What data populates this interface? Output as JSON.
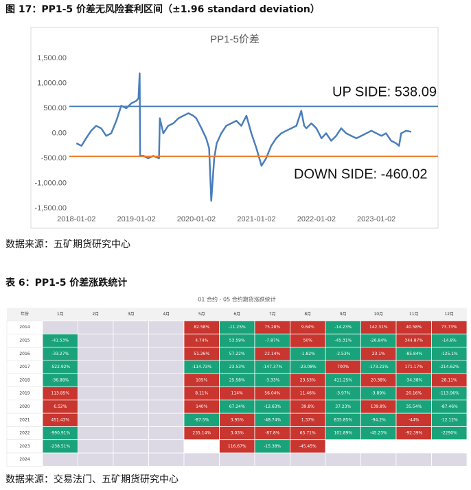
{
  "figure_title": "图 17：PP1-5 价差无风险套利区间（±1.96 standard deviation）",
  "chart_data": {
    "type": "line",
    "title": "PP1-5价差",
    "x": [
      "2018-01-02",
      "2018-02-02",
      "2018-03-02",
      "2018-04-02",
      "2018-05-02",
      "2018-06-02",
      "2018-07-02",
      "2018-08-02",
      "2018-09-02",
      "2018-10-02",
      "2018-11-02",
      "2018-12-02",
      "2019-01-02",
      "2019-01-15",
      "2019-01-22",
      "2019-01-25",
      "2019-02-15",
      "2019-03-15",
      "2019-04-15",
      "2019-05-20",
      "2019-05-25",
      "2019-06-15",
      "2019-07-15",
      "2019-08-15",
      "2019-09-15",
      "2019-10-15",
      "2019-11-15",
      "2019-12-15",
      "2020-01-02",
      "2020-02-02",
      "2020-03-02",
      "2020-03-20",
      "2020-04-02",
      "2020-04-20",
      "2020-05-05",
      "2020-06-02",
      "2020-07-02",
      "2020-08-02",
      "2020-09-02",
      "2020-10-02",
      "2020-11-02",
      "2020-12-02",
      "2021-01-02",
      "2021-02-02",
      "2021-03-02",
      "2021-04-02",
      "2021-05-02",
      "2021-06-02",
      "2021-07-02",
      "2021-08-02",
      "2021-09-02",
      "2021-10-02",
      "2021-10-20",
      "2021-11-02",
      "2021-12-02",
      "2022-01-02",
      "2022-02-02",
      "2022-03-02",
      "2022-04-02",
      "2022-05-02",
      "2022-06-02",
      "2022-07-02",
      "2022-08-02",
      "2022-09-02",
      "2022-10-02",
      "2022-11-02",
      "2022-12-02",
      "2023-01-02",
      "2023-02-02",
      "2023-03-02",
      "2023-04-02",
      "2023-05-02",
      "2023-05-20",
      "2023-06-02",
      "2023-07-02",
      "2023-08-02"
    ],
    "series": [
      {
        "name": "PP1-5价差",
        "color": "#4a7ebb",
        "values": [
          -200,
          -250,
          -100,
          50,
          150,
          100,
          -50,
          0,
          250,
          550,
          500,
          600,
          650,
          700,
          1200,
          -450,
          -450,
          -500,
          -450,
          -500,
          300,
          0,
          150,
          200,
          300,
          350,
          400,
          350,
          300,
          100,
          -100,
          -300,
          -1350,
          -500,
          -200,
          0,
          150,
          200,
          250,
          150,
          350,
          0,
          -300,
          -650,
          -500,
          -250,
          -100,
          0,
          50,
          100,
          150,
          450,
          150,
          100,
          200,
          100,
          -100,
          0,
          -150,
          -50,
          100,
          0,
          -50,
          -100,
          -50,
          0,
          50,
          0,
          -50,
          0,
          -150,
          -200,
          -250,
          0,
          50,
          30
        ]
      }
    ],
    "hlines": [
      {
        "value": 538.09,
        "color": "#4a7ebb",
        "label": "UP SIDE: 538.09"
      },
      {
        "value": -460.02,
        "color": "#f07b2a",
        "label": "DOWN SIDE: -460.02"
      }
    ],
    "ylim": [
      -1500,
      1500
    ],
    "yticks": [
      {
        "value": -1500,
        "label": "-1,500.00"
      },
      {
        "value": -1000,
        "label": "-1,000.00"
      },
      {
        "value": -500,
        "label": "-500.00"
      },
      {
        "value": 0,
        "label": "0.00"
      },
      {
        "value": 500,
        "label": "500.00"
      },
      {
        "value": 1000,
        "label": "1,000.00"
      },
      {
        "value": 1500,
        "label": "1,500.00"
      }
    ],
    "xlim": [
      "2017-11-20",
      "2023-12-10"
    ],
    "xticks": [
      "2018-01-02",
      "2019-01-02",
      "2020-01-02",
      "2021-01-02",
      "2022-01-02",
      "2023-01-02"
    ]
  },
  "source1": "数据来源：五矿期货研究中心",
  "table_title": "表 6：PP1-5 价差涨跌统计",
  "table": {
    "caption": "01 合约 - 05 合约期货涨跌统计",
    "header": [
      "年份",
      "1月",
      "2月",
      "3月",
      "4月",
      "5月",
      "6月",
      "7月",
      "8月",
      "9月",
      "10月",
      "11月",
      "12月"
    ],
    "up_color": "#c8362f",
    "down_color": "#1aa37a",
    "empty_color": "#dcd8e4",
    "rows": [
      {
        "year": "2014",
        "cells": [
          null,
          null,
          null,
          null,
          {
            "t": "82.58%",
            "up": true
          },
          {
            "t": "-11.25%",
            "up": false
          },
          {
            "t": "75.28%",
            "up": true
          },
          {
            "t": "9.64%",
            "up": true
          },
          {
            "t": "-14.23%",
            "up": false
          },
          {
            "t": "142.31%",
            "up": true
          },
          {
            "t": "40.58%",
            "up": true
          },
          {
            "t": "73.73%",
            "up": true
          }
        ]
      },
      {
        "year": "2015",
        "cells": [
          {
            "t": "-41.53%",
            "up": false
          },
          null,
          null,
          null,
          {
            "t": "4.74%",
            "up": true
          },
          {
            "t": "53.59%",
            "up": false
          },
          {
            "t": "-7.87%",
            "up": false
          },
          {
            "t": "50%",
            "up": true
          },
          {
            "t": "-45.31%",
            "up": false
          },
          {
            "t": "-26.84%",
            "up": false
          },
          {
            "t": "344.87%",
            "up": true
          },
          {
            "t": "-14.8%",
            "up": false
          }
        ]
      },
      {
        "year": "2016",
        "cells": [
          {
            "t": "-33.27%",
            "up": false
          },
          null,
          null,
          null,
          {
            "t": "51.26%",
            "up": true
          },
          {
            "t": "57.22%",
            "up": false
          },
          {
            "t": "22.14%",
            "up": true
          },
          {
            "t": "-1.82%",
            "up": false
          },
          {
            "t": "-2.53%",
            "up": false
          },
          {
            "t": "23.1%",
            "up": true
          },
          {
            "t": "-85.84%",
            "up": false
          },
          {
            "t": "-125.1%",
            "up": false
          }
        ]
      },
      {
        "year": "2017",
        "cells": [
          {
            "t": "-522.92%",
            "up": false
          },
          null,
          null,
          null,
          {
            "t": "-114.73%",
            "up": false
          },
          {
            "t": "23.53%",
            "up": false
          },
          {
            "t": "-147.37%",
            "up": false
          },
          {
            "t": "-23.08%",
            "up": false
          },
          {
            "t": "700%",
            "up": true
          },
          {
            "t": "-173.21%",
            "up": false
          },
          {
            "t": "171.17%",
            "up": true
          },
          {
            "t": "-214.62%",
            "up": false
          }
        ]
      },
      {
        "year": "2018",
        "cells": [
          {
            "t": "-36.88%",
            "up": false
          },
          null,
          null,
          null,
          {
            "t": "105%",
            "up": true
          },
          {
            "t": "25.58%",
            "up": false
          },
          {
            "t": "-3.33%",
            "up": false
          },
          {
            "t": "23.53%",
            "up": true
          },
          {
            "t": "411.25%",
            "up": false
          },
          {
            "t": "20.38%",
            "up": true
          },
          {
            "t": "-34.38%",
            "up": false
          },
          {
            "t": "28.11%",
            "up": true
          }
        ]
      },
      {
        "year": "2019",
        "cells": [
          {
            "t": "113.85%",
            "up": true
          },
          null,
          null,
          null,
          {
            "t": "8.11%",
            "up": true
          },
          {
            "t": "114%",
            "up": true
          },
          {
            "t": "56.04%",
            "up": true
          },
          {
            "t": "11.46%",
            "up": true
          },
          {
            "t": "-3.97%",
            "up": false
          },
          {
            "t": "-3.89%",
            "up": false
          },
          {
            "t": "20.16%",
            "up": true
          },
          {
            "t": "-113.96%",
            "up": false
          }
        ]
      },
      {
        "year": "2020",
        "cells": [
          {
            "t": "6.52%",
            "up": true
          },
          null,
          null,
          null,
          {
            "t": "140%",
            "up": true
          },
          {
            "t": "67.24%",
            "up": false
          },
          {
            "t": "-12.63%",
            "up": false
          },
          {
            "t": "39.8%",
            "up": true
          },
          {
            "t": "37.23%",
            "up": false
          },
          {
            "t": "139.8%",
            "up": true
          },
          {
            "t": "35.54%",
            "up": false
          },
          {
            "t": "-87.46%",
            "up": false
          }
        ]
      },
      {
        "year": "2021",
        "cells": [
          {
            "t": "451.43%",
            "up": true
          },
          null,
          null,
          null,
          {
            "t": "-87.5%",
            "up": false
          },
          {
            "t": "3.95%",
            "up": true
          },
          {
            "t": "-48.74%",
            "up": false
          },
          {
            "t": "1.37%",
            "up": true
          },
          {
            "t": "835.85%",
            "up": false
          },
          {
            "t": "-94.2%",
            "up": false
          },
          {
            "t": "-44%",
            "up": true
          },
          {
            "t": "-12.12%",
            "up": false
          }
        ]
      },
      {
        "year": "2022",
        "cells": [
          {
            "t": "-990.91%",
            "up": false
          },
          null,
          null,
          null,
          {
            "t": "235.14%",
            "up": true
          },
          {
            "t": "3.03%",
            "up": true
          },
          {
            "t": "-87.8%",
            "up": true
          },
          {
            "t": "65.71%",
            "up": true
          },
          {
            "t": "101.89%",
            "up": false
          },
          {
            "t": "-45.23%",
            "up": false
          },
          {
            "t": "-92.39%",
            "up": true
          },
          {
            "t": "-2290%",
            "up": false
          }
        ]
      },
      {
        "year": "2023",
        "cells": [
          {
            "t": "-238.51%",
            "up": false
          },
          null,
          null,
          null,
          null,
          {
            "t": "116.67%",
            "up": true
          },
          {
            "t": "-15.38%",
            "up": false
          },
          {
            "t": "-45.45%",
            "up": true
          },
          null,
          null,
          null,
          null
        ]
      },
      {
        "year": "2024",
        "cells": [
          null,
          null,
          null,
          null,
          null,
          null,
          null,
          null,
          null,
          null,
          null,
          null
        ]
      }
    ]
  },
  "source2": "数据来源：交易法门、五矿期货研究中心"
}
